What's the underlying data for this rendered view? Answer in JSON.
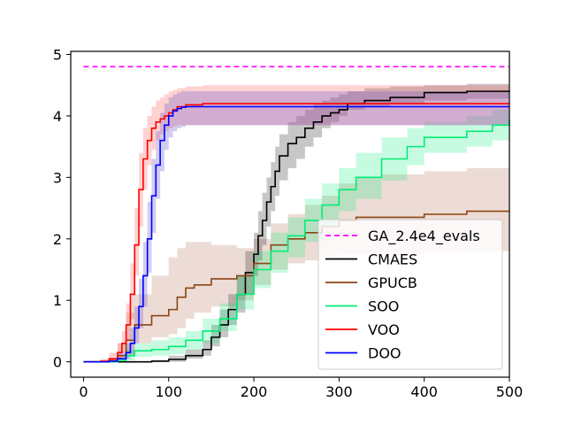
{
  "chart_data": {
    "type": "line",
    "title": "",
    "xlabel": "",
    "ylabel": "",
    "xlim": [
      -15,
      500
    ],
    "ylim": [
      -0.25,
      5.05
    ],
    "grid": false,
    "legend_position": "lower-right",
    "x_ticks": [
      0,
      100,
      200,
      300,
      400,
      500
    ],
    "x_tick_labels": [
      "0",
      "100",
      "200",
      "300",
      "400",
      "500"
    ],
    "y_ticks": [
      0,
      1,
      2,
      3,
      4,
      5
    ],
    "y_tick_labels": [
      "0",
      "1",
      "2",
      "3",
      "4",
      "5"
    ],
    "series": [
      {
        "name": "GA_2.4e4_evals",
        "color": "#ff00ff",
        "dashed": true,
        "x": [
          0,
          500
        ],
        "y": [
          4.8,
          4.8
        ]
      },
      {
        "name": "CMAES",
        "color": "#000000",
        "x": [
          0,
          80,
          100,
          120,
          140,
          150,
          160,
          170,
          180,
          190,
          200,
          205,
          210,
          215,
          220,
          225,
          230,
          240,
          250,
          260,
          270,
          280,
          290,
          300,
          310,
          330,
          360,
          400,
          450,
          500
        ],
        "y": [
          0,
          0.01,
          0.04,
          0.1,
          0.2,
          0.4,
          0.6,
          0.85,
          1.1,
          1.45,
          1.75,
          2.05,
          2.3,
          2.6,
          2.85,
          3.1,
          3.35,
          3.55,
          3.65,
          3.8,
          3.9,
          4.0,
          4.05,
          4.1,
          4.2,
          4.25,
          4.3,
          4.38,
          4.4,
          4.41
        ],
        "lower": [
          0,
          0,
          0,
          0.05,
          0.1,
          0.25,
          0.4,
          0.6,
          0.8,
          1.1,
          1.4,
          1.65,
          1.9,
          2.2,
          2.45,
          2.7,
          2.95,
          3.15,
          3.3,
          3.5,
          3.65,
          3.8,
          3.9,
          4.0,
          4.1,
          4.15,
          4.2,
          4.25,
          4.28,
          4.3
        ],
        "upper": [
          0,
          0.03,
          0.1,
          0.2,
          0.35,
          0.6,
          0.85,
          1.1,
          1.4,
          1.8,
          2.1,
          2.45,
          2.75,
          3.0,
          3.25,
          3.5,
          3.7,
          3.9,
          4.0,
          4.1,
          4.2,
          4.25,
          4.3,
          4.35,
          4.4,
          4.45,
          4.48,
          4.5,
          4.52,
          4.52
        ]
      },
      {
        "name": "GPUCB",
        "color": "#8b4513",
        "x": [
          0,
          30,
          40,
          50,
          60,
          80,
          100,
          110,
          120,
          130,
          150,
          180,
          200,
          220,
          240,
          260,
          280,
          300,
          320,
          350,
          400,
          450,
          500
        ],
        "y": [
          0,
          0.02,
          0.1,
          0.35,
          0.6,
          0.75,
          0.85,
          1.05,
          1.2,
          1.25,
          1.35,
          1.4,
          1.6,
          1.9,
          2.0,
          2.1,
          2.2,
          2.3,
          2.35,
          2.35,
          2.4,
          2.45,
          2.45
        ],
        "lower": [
          0,
          0,
          0.02,
          0.1,
          0.3,
          0.4,
          0.45,
          0.55,
          0.7,
          0.8,
          0.9,
          1.0,
          1.25,
          1.5,
          1.6,
          1.65,
          1.7,
          1.75,
          1.75,
          1.75,
          1.78,
          1.8,
          1.8
        ],
        "upper": [
          0,
          0.05,
          0.3,
          0.8,
          1.1,
          1.4,
          1.7,
          1.85,
          1.95,
          1.95,
          1.9,
          1.85,
          2.0,
          2.25,
          2.4,
          2.55,
          2.7,
          2.9,
          3.0,
          3.05,
          3.1,
          3.15,
          3.15
        ]
      },
      {
        "name": "SOO",
        "color": "#00ee77",
        "x": [
          0,
          40,
          50,
          60,
          80,
          100,
          120,
          140,
          160,
          180,
          200,
          220,
          240,
          260,
          280,
          300,
          320,
          350,
          380,
          400,
          450,
          480,
          500
        ],
        "y": [
          0,
          0.02,
          0.1,
          0.18,
          0.2,
          0.25,
          0.35,
          0.5,
          0.7,
          1.1,
          1.5,
          1.8,
          2.05,
          2.3,
          2.55,
          2.8,
          3.0,
          3.3,
          3.5,
          3.65,
          3.75,
          3.85,
          3.95
        ],
        "lower": [
          0,
          0,
          0.02,
          0.08,
          0.1,
          0.12,
          0.2,
          0.3,
          0.5,
          0.85,
          1.2,
          1.45,
          1.7,
          1.95,
          2.2,
          2.45,
          2.65,
          2.95,
          3.2,
          3.4,
          3.5,
          3.6,
          3.7
        ],
        "upper": [
          0,
          0.05,
          0.2,
          0.3,
          0.35,
          0.4,
          0.5,
          0.7,
          0.95,
          1.4,
          1.8,
          2.1,
          2.35,
          2.65,
          2.9,
          3.15,
          3.4,
          3.65,
          3.8,
          3.9,
          4.0,
          4.1,
          4.15
        ]
      },
      {
        "name": "VOO",
        "color": "#ff0000",
        "x": [
          0,
          20,
          30,
          40,
          45,
          50,
          55,
          60,
          65,
          70,
          75,
          80,
          85,
          90,
          95,
          100,
          105,
          110,
          120,
          140,
          200,
          300,
          400,
          500
        ],
        "y": [
          0,
          0.01,
          0.05,
          0.15,
          0.3,
          0.6,
          1.1,
          1.9,
          2.8,
          3.3,
          3.6,
          3.8,
          3.9,
          3.95,
          4.0,
          4.05,
          4.1,
          4.15,
          4.18,
          4.2,
          4.2,
          4.2,
          4.2,
          4.2
        ],
        "lower": [
          0,
          0,
          0,
          0.05,
          0.15,
          0.35,
          0.7,
          1.4,
          2.2,
          2.8,
          3.2,
          3.45,
          3.6,
          3.7,
          3.75,
          3.8,
          3.83,
          3.85,
          3.85,
          3.85,
          3.85,
          3.85,
          3.85,
          3.85
        ],
        "upper": [
          0,
          0.05,
          0.15,
          0.3,
          0.5,
          0.95,
          1.6,
          2.5,
          3.4,
          3.8,
          4.0,
          4.15,
          4.25,
          4.3,
          4.35,
          4.4,
          4.42,
          4.45,
          4.48,
          4.5,
          4.5,
          4.5,
          4.5,
          4.5
        ]
      },
      {
        "name": "DOO",
        "color": "#0000ff",
        "x": [
          0,
          30,
          40,
          50,
          55,
          60,
          65,
          70,
          75,
          80,
          85,
          90,
          95,
          100,
          105,
          110,
          115,
          120,
          140,
          200,
          300,
          400,
          500
        ],
        "y": [
          0,
          0.01,
          0.05,
          0.15,
          0.3,
          0.55,
          0.9,
          1.4,
          2.0,
          2.7,
          3.2,
          3.6,
          3.85,
          4.0,
          4.08,
          4.12,
          4.14,
          4.15,
          4.15,
          4.15,
          4.15,
          4.15,
          4.15
        ],
        "lower": [
          0,
          0,
          0.01,
          0.05,
          0.12,
          0.3,
          0.55,
          0.9,
          1.45,
          2.1,
          2.65,
          3.1,
          3.45,
          3.65,
          3.75,
          3.8,
          3.82,
          3.85,
          3.85,
          3.85,
          3.85,
          3.85,
          3.85
        ],
        "upper": [
          0,
          0.05,
          0.15,
          0.3,
          0.55,
          0.9,
          1.35,
          1.95,
          2.6,
          3.3,
          3.75,
          4.05,
          4.2,
          4.3,
          4.35,
          4.38,
          4.4,
          4.4,
          4.4,
          4.4,
          4.4,
          4.4,
          4.4
        ]
      }
    ]
  },
  "colors": {
    "background": "#ffffff",
    "axes": "#000000",
    "legend_border": "#cccccc",
    "band_CMAES": "#000000",
    "band_GPUCB": "#a0522d",
    "band_SOO": "#00ee77",
    "band_VOO": "#ff6666",
    "band_DOO": "#6a5acd"
  }
}
